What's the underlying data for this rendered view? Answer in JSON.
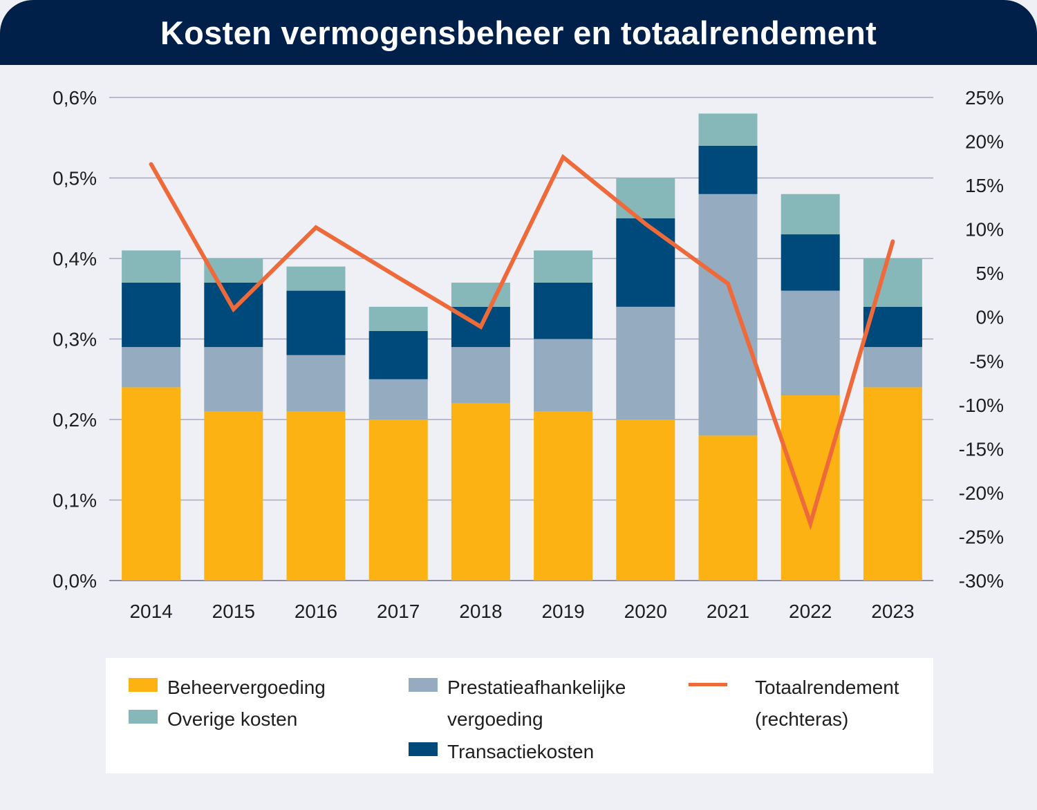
{
  "header": {
    "title": "Kosten vermogensbeheer en totaalrendement"
  },
  "chart_data": {
    "type": "bar",
    "stacked": true,
    "title": "Kosten vermogensbeheer en totaalrendement",
    "categories": [
      "2014",
      "2015",
      "2016",
      "2017",
      "2018",
      "2019",
      "2020",
      "2021",
      "2022",
      "2023"
    ],
    "series": [
      {
        "name": "Beheervergoeding",
        "color": "#fbb212",
        "values": [
          0.24,
          0.21,
          0.21,
          0.2,
          0.22,
          0.21,
          0.2,
          0.18,
          0.23,
          0.24
        ]
      },
      {
        "name": "Prestatieafhankelijke vergoeding",
        "color": "#95abbf",
        "values": [
          0.05,
          0.08,
          0.07,
          0.05,
          0.07,
          0.09,
          0.14,
          0.3,
          0.13,
          0.05
        ]
      },
      {
        "name": "Transactiekosten",
        "color": "#004a7b",
        "values": [
          0.08,
          0.08,
          0.08,
          0.06,
          0.05,
          0.07,
          0.11,
          0.06,
          0.07,
          0.05
        ]
      },
      {
        "name": "Overige kosten",
        "color": "#86b8ba",
        "values": [
          0.04,
          0.03,
          0.03,
          0.03,
          0.03,
          0.04,
          0.05,
          0.04,
          0.05,
          0.06
        ]
      }
    ],
    "line_series": {
      "name": "Totaalrendement (rechteras)",
      "color": "#ee6a3b",
      "axis": "right",
      "values": [
        17.4,
        0.9,
        10.2,
        4.5,
        -1.1,
        18.2,
        10.6,
        3.8,
        -23.5,
        8.6
      ]
    },
    "y_left": {
      "min": 0,
      "max": 0.6,
      "ticks": [
        "0,0%",
        "0,1%",
        "0,2%",
        "0,3%",
        "0,4%",
        "0,5%",
        "0,6%"
      ]
    },
    "y_right": {
      "min": -30,
      "max": 25,
      "ticks": [
        "-30%",
        "-25%",
        "-20%",
        "-15%",
        "-10%",
        "-5%",
        "0%",
        "5%",
        "10%",
        "15%",
        "20%",
        "25%"
      ]
    },
    "grid": true,
    "legend_position": "bottom"
  },
  "legend": {
    "items": [
      {
        "label": "Beheervergoeding",
        "color": "#fbb212",
        "kind": "box"
      },
      {
        "label": "Overige kosten",
        "color": "#86b8ba",
        "kind": "box"
      },
      {
        "label": "Prestatieafhankelijke vergoeding",
        "color": "#95abbf",
        "kind": "box"
      },
      {
        "label": "Transactiekosten",
        "color": "#004a7b",
        "kind": "box"
      },
      {
        "label": "Totaalrendement (rechteras)",
        "color": "#ee6a3b",
        "kind": "line"
      }
    ]
  }
}
